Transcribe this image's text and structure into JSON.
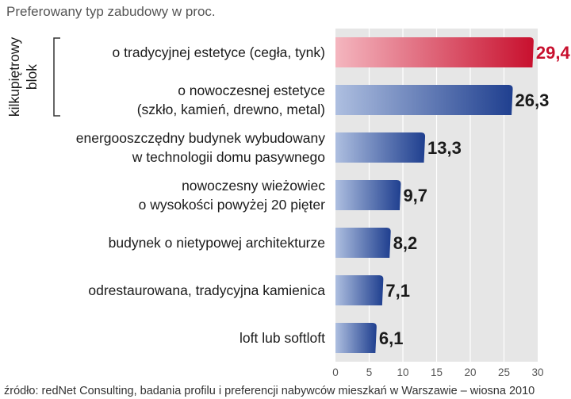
{
  "chart_data": {
    "type": "bar",
    "orientation": "horizontal",
    "title": "Preferowany typ zabudowy w proc.",
    "group_label": [
      "kilkupiętrowy",
      "blok"
    ],
    "categories": [
      [
        "o tradycyjnej  estetyce (cegła, tynk)"
      ],
      [
        "o nowoczesnej estetyce",
        "(szkło, kamień, drewno, metal)"
      ],
      [
        "energooszczędny budynek wybudowany",
        "w technologii domu pasywnego"
      ],
      [
        "nowoczesny wieżowiec",
        "o wysokości powyżej 20 pięter"
      ],
      [
        "budynek o nietypowej architekturze"
      ],
      [
        "odrestaurowana, tradycyjna kamienica"
      ],
      [
        "loft lub softloft"
      ]
    ],
    "values": [
      29.4,
      26.3,
      13.3,
      9.7,
      8.2,
      7.1,
      6.1
    ],
    "value_labels": [
      "29,4",
      "26,3",
      "13,3",
      "9,7",
      "8,2",
      "7,1",
      "6,1"
    ],
    "highlight_index": 0,
    "xlim": [
      0,
      30
    ],
    "xticks": [
      0,
      5,
      10,
      15,
      20,
      25,
      30
    ],
    "grid": false,
    "colors": {
      "highlight": "#c8102e",
      "highlight_light": "#f4b6bf",
      "highlight_label": "#c8102e",
      "bar": "#1f3f8f",
      "bar_light": "#aebfe0",
      "panel": "#e6e6e6",
      "tick_line": "#ffffff"
    },
    "source": "źródło: redNet Consulting, badania profilu i preferencji nabywców mieszkań w Warszawie – wiosna 2010"
  }
}
